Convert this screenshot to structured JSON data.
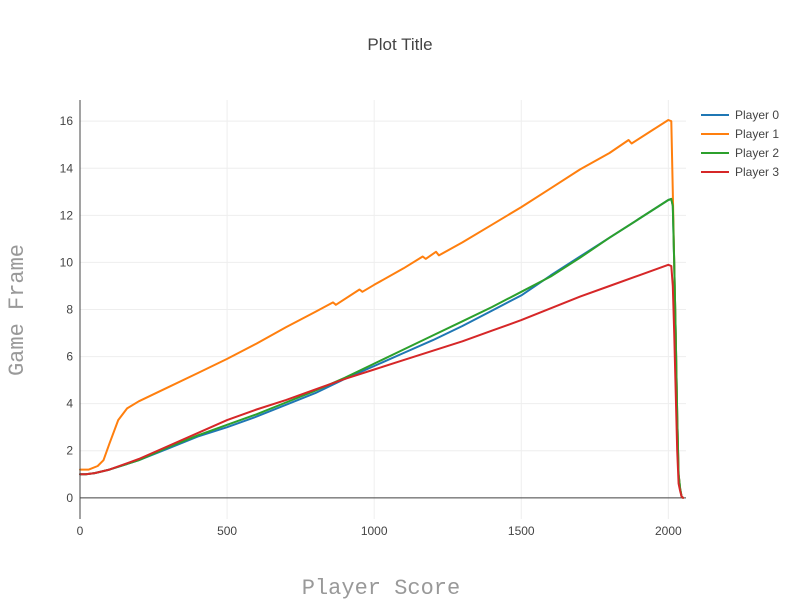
{
  "chart_data": {
    "type": "line",
    "title": "Plot Title",
    "xlabel": "Player Score",
    "ylabel": "Game Frame",
    "xlim": [
      0,
      2060
    ],
    "ylim": [
      -0.9,
      16.9
    ],
    "x_ticks": [
      0,
      500,
      1000,
      1500,
      2000
    ],
    "y_ticks": [
      0,
      2,
      4,
      6,
      8,
      10,
      12,
      14,
      16
    ],
    "grid": true,
    "legend_position": "top-right",
    "series": [
      {
        "name": "Player 0",
        "color": "#1f77b4",
        "x": [
          0,
          20,
          50,
          100,
          200,
          300,
          400,
          500,
          600,
          700,
          800,
          900,
          1000,
          1100,
          1200,
          1300,
          1400,
          1500,
          1600,
          1700,
          1800,
          1900,
          2000,
          2010,
          2015,
          2020,
          2025,
          2030,
          2035,
          2040,
          2045,
          2050
        ],
        "y": [
          1.0,
          1.0,
          1.05,
          1.2,
          1.6,
          2.1,
          2.6,
          3.0,
          3.45,
          3.95,
          4.45,
          5.05,
          5.6,
          6.15,
          6.7,
          7.3,
          7.95,
          8.6,
          9.45,
          10.25,
          11.05,
          11.85,
          12.65,
          12.7,
          12.4,
          10.0,
          7.0,
          3.5,
          1.0,
          0.4,
          0.05,
          0.0
        ]
      },
      {
        "name": "Player 1",
        "color": "#ff7f0e",
        "x": [
          0,
          30,
          60,
          80,
          100,
          130,
          160,
          200,
          300,
          400,
          500,
          600,
          700,
          800,
          860,
          870,
          950,
          960,
          1000,
          1100,
          1165,
          1175,
          1210,
          1220,
          1300,
          1400,
          1500,
          1600,
          1700,
          1800,
          1865,
          1875,
          1950,
          2000,
          2010,
          2015,
          2020,
          2025,
          2030,
          2035,
          2040,
          2045,
          2050
        ],
        "y": [
          1.2,
          1.2,
          1.35,
          1.6,
          2.3,
          3.3,
          3.8,
          4.1,
          4.7,
          5.3,
          5.9,
          6.55,
          7.25,
          7.9,
          8.3,
          8.2,
          8.85,
          8.75,
          9.05,
          9.75,
          10.25,
          10.15,
          10.45,
          10.3,
          10.85,
          11.6,
          12.35,
          13.15,
          13.95,
          14.65,
          15.2,
          15.05,
          15.65,
          16.05,
          16.0,
          13.0,
          10.0,
          7.0,
          3.5,
          1.0,
          0.4,
          0.05,
          0.0
        ]
      },
      {
        "name": "Player 2",
        "color": "#2ca02c",
        "x": [
          0,
          20,
          50,
          100,
          200,
          300,
          400,
          500,
          600,
          700,
          800,
          900,
          1000,
          1100,
          1200,
          1300,
          1400,
          1500,
          1600,
          1700,
          1800,
          1900,
          2000,
          2010,
          2015,
          2020,
          2025,
          2030,
          2035,
          2040,
          2045,
          2050
        ],
        "y": [
          1.0,
          1.0,
          1.05,
          1.2,
          1.6,
          2.15,
          2.65,
          3.1,
          3.55,
          4.05,
          4.55,
          5.1,
          5.7,
          6.3,
          6.9,
          7.5,
          8.1,
          8.75,
          9.4,
          10.2,
          11.05,
          11.85,
          12.65,
          12.7,
          12.4,
          10.0,
          7.0,
          3.5,
          1.0,
          0.4,
          0.05,
          0.0
        ]
      },
      {
        "name": "Player 3",
        "color": "#d62728",
        "x": [
          0,
          20,
          50,
          100,
          200,
          300,
          400,
          500,
          600,
          700,
          800,
          900,
          1000,
          1100,
          1200,
          1300,
          1400,
          1500,
          1600,
          1700,
          1800,
          1900,
          2000,
          2010,
          2015,
          2020,
          2025,
          2030,
          2035,
          2040,
          2045,
          2050
        ],
        "y": [
          1.0,
          1.0,
          1.05,
          1.2,
          1.65,
          2.2,
          2.75,
          3.3,
          3.75,
          4.15,
          4.6,
          5.05,
          5.45,
          5.85,
          6.25,
          6.65,
          7.1,
          7.55,
          8.05,
          8.55,
          9.0,
          9.45,
          9.9,
          9.85,
          9.0,
          7.0,
          4.5,
          2.0,
          0.6,
          0.3,
          0.05,
          0.0
        ]
      }
    ]
  }
}
